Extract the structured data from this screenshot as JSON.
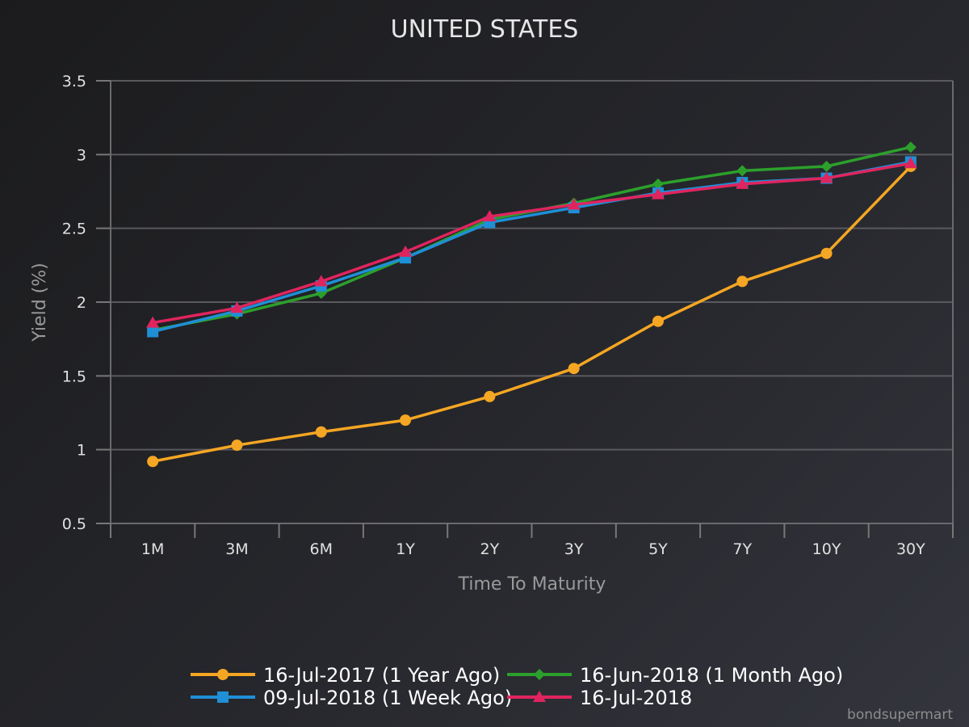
{
  "chart_data": {
    "type": "line",
    "title": "UNITED STATES",
    "xlabel": "Time To Maturity",
    "ylabel": "Yield (%)",
    "categories": [
      "1M",
      "3M",
      "6M",
      "1Y",
      "2Y",
      "3Y",
      "5Y",
      "7Y",
      "10Y",
      "30Y"
    ],
    "ylim": [
      0.5,
      3.5
    ],
    "yticks": [
      "0.5",
      "1",
      "1.5",
      "2",
      "2.5",
      "3",
      "3.5"
    ],
    "grid": true,
    "legend_position": "bottom",
    "series": [
      {
        "name": "16-Jul-2017 (1 Year Ago)",
        "color": "#f5a623",
        "marker": "circle",
        "values": [
          0.92,
          1.03,
          1.12,
          1.2,
          1.36,
          1.55,
          1.87,
          2.14,
          2.33,
          2.92
        ]
      },
      {
        "name": "16-Jun-2018 (1 Month Ago)",
        "color": "#2ca02c",
        "marker": "diamond",
        "values": [
          1.81,
          1.92,
          2.06,
          2.3,
          2.56,
          2.67,
          2.8,
          2.89,
          2.92,
          3.05
        ]
      },
      {
        "name": "09-Jul-2018 (1 Week Ago)",
        "color": "#1f8fd6",
        "marker": "square",
        "values": [
          1.8,
          1.94,
          2.11,
          2.3,
          2.54,
          2.64,
          2.74,
          2.81,
          2.84,
          2.95
        ]
      },
      {
        "name": "16-Jul-2018",
        "color": "#e0245e",
        "marker": "triangle",
        "values": [
          1.86,
          1.96,
          2.14,
          2.34,
          2.58,
          2.66,
          2.73,
          2.8,
          2.84,
          2.94
        ]
      }
    ]
  },
  "credit": "bondsupermart"
}
